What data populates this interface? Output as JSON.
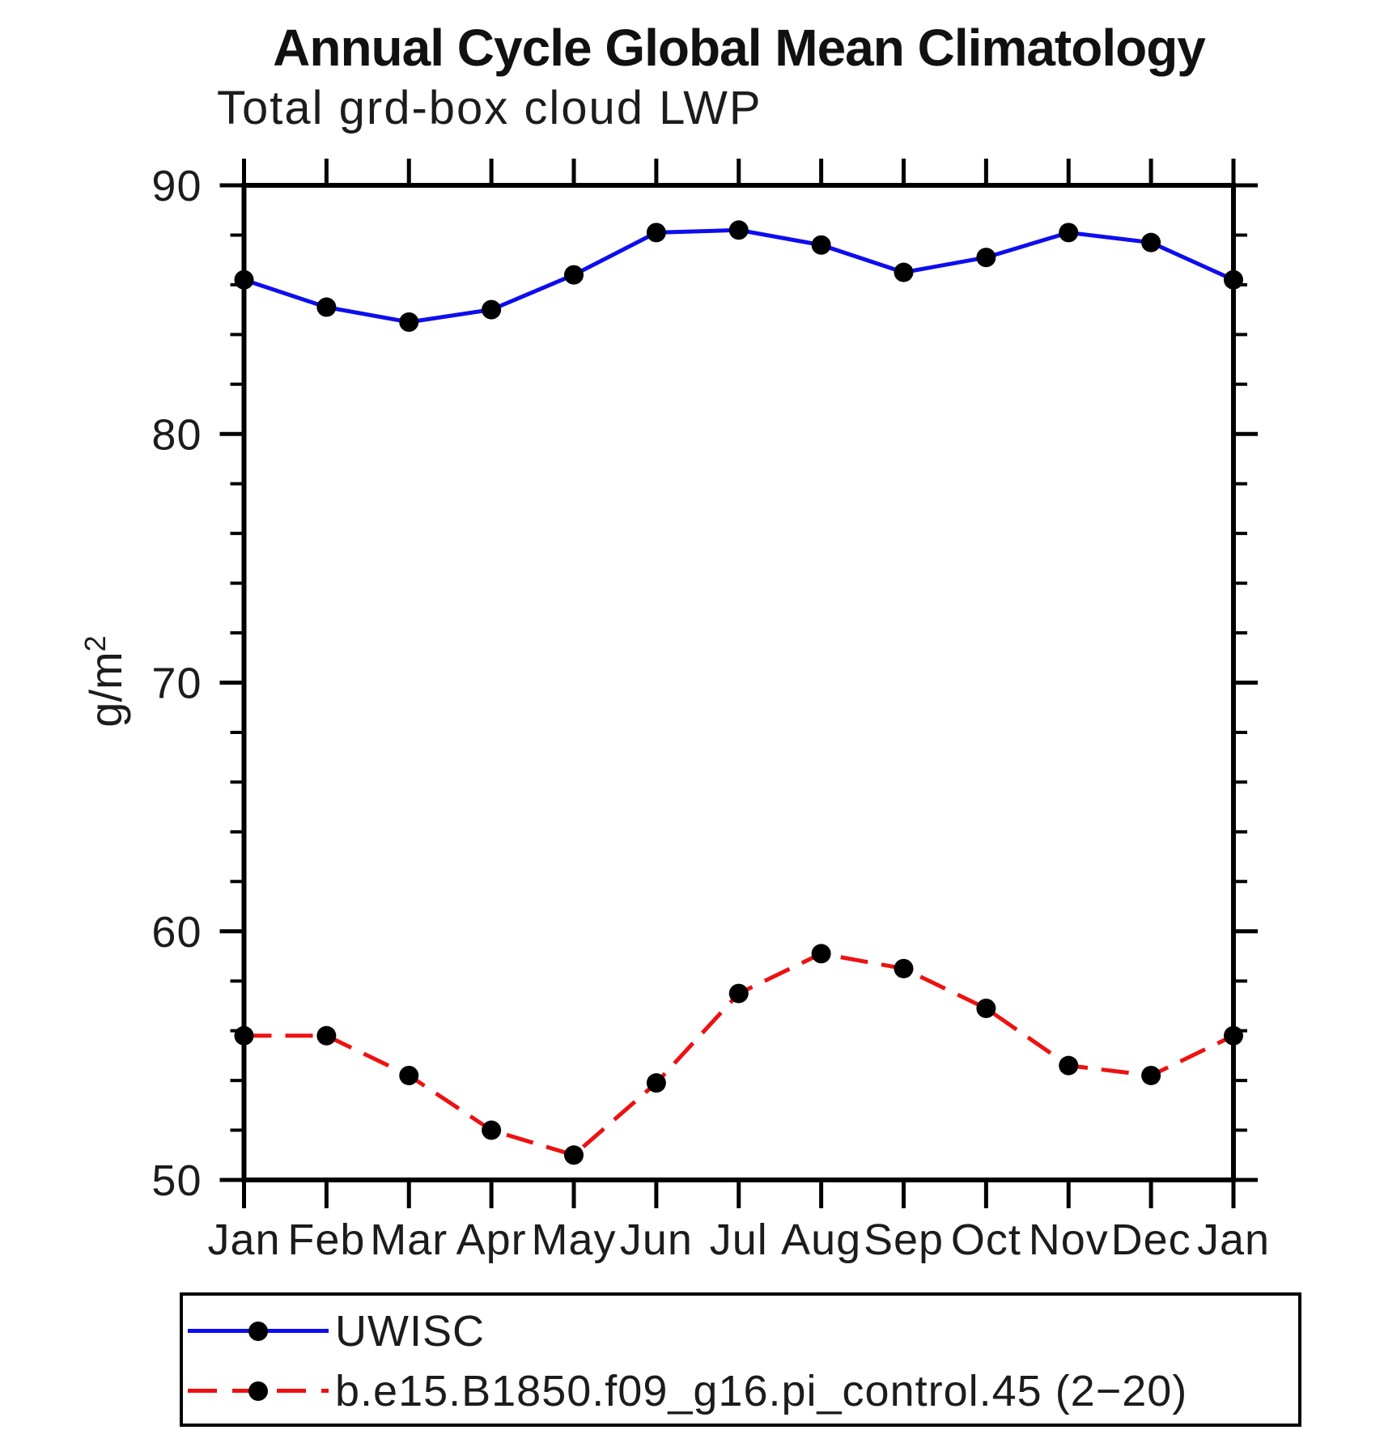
{
  "page": {
    "background": "#ffffff"
  },
  "chart": {
    "title": "Annual Cycle Global Mean Climatology",
    "subtitle": "Total grd-box cloud LWP",
    "ylabel_base": "g/m",
    "ylabel_sup": "2"
  },
  "legend": {
    "entries": [
      {
        "label": "UWISC",
        "color": "#0d0dee",
        "line_style": "solid",
        "marker": "black-dot"
      },
      {
        "label": "b.e15.B1850.f09_g16.pi_control.45 (2−20)",
        "color": "#ee1111",
        "line_style": "dashed",
        "marker": "black-dot"
      }
    ]
  },
  "chart_data": {
    "type": "line",
    "title": "Annual Cycle Global Mean Climatology",
    "subtitle": "Total grd-box cloud LWP",
    "xlabel": "",
    "ylabel": "g/m²",
    "categories": [
      "Jan",
      "Feb",
      "Mar",
      "Apr",
      "May",
      "Jun",
      "Jul",
      "Aug",
      "Sep",
      "Oct",
      "Nov",
      "Dec",
      "Jan"
    ],
    "series": [
      {
        "name": "UWISC",
        "color": "#0d0dee",
        "line_style": "solid",
        "marker": "filled-circle",
        "marker_color": "#000000",
        "values": [
          86.2,
          85.1,
          84.5,
          85.0,
          86.4,
          88.1,
          88.2,
          87.6,
          86.5,
          87.1,
          88.1,
          87.7,
          86.2
        ]
      },
      {
        "name": "b.e15.B1850.f09_g16.pi_control.45 (2−20)",
        "color": "#ee1111",
        "line_style": "dashed",
        "marker": "filled-circle",
        "marker_color": "#000000",
        "values": [
          55.8,
          55.8,
          54.2,
          52.0,
          51.0,
          53.9,
          57.5,
          59.1,
          58.5,
          56.9,
          54.6,
          54.2,
          55.8
        ]
      }
    ],
    "ylim": [
      50,
      90
    ],
    "y_major_tick_step": 10,
    "y_minor_tick_step": 2,
    "grid": false,
    "legend_position": "bottom-left"
  }
}
